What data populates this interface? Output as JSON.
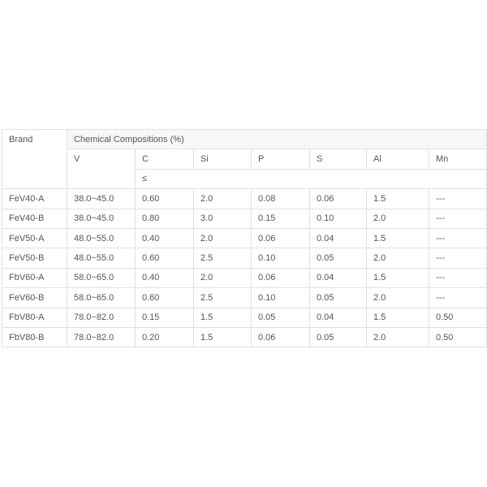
{
  "table": {
    "brand_header": "Brand",
    "group_header": "Chemical Compositions (%)",
    "elements": [
      "V",
      "C",
      "Si",
      "P",
      "S",
      "Al",
      "Mn"
    ],
    "limit_symbol": "≤",
    "rows": [
      [
        "FeV40-A",
        "38.0~45.0",
        "0.60",
        "2.0",
        "0.08",
        "0.06",
        "1.5",
        "---"
      ],
      [
        "FeV40-B",
        "38.0~45.0",
        "0.80",
        "3.0",
        "0.15",
        "0.10",
        "2.0",
        "---"
      ],
      [
        "FeV50-A",
        "48.0~55.0",
        "0.40",
        "2.0",
        "0.06",
        "0.04",
        "1.5",
        "---"
      ],
      [
        "FeV50-B",
        "48.0~55.0",
        "0.60",
        "2.5",
        "0.10",
        "0.05",
        "2.0",
        "---"
      ],
      [
        "FbV60-A",
        "58.0~65.0",
        "0.40",
        "2.0",
        "0.06",
        "0.04",
        "1.5",
        "---"
      ],
      [
        "FeV60-B",
        "58.0~65.0",
        "0.60",
        "2.5",
        "0.10",
        "0.05",
        "2.0",
        "---"
      ],
      [
        "FbV80-A",
        "78.0~82.0",
        "0.15",
        "1.5",
        "0.05",
        "0.04",
        "1.5",
        "0.50"
      ],
      [
        "FbV80-B",
        "78.0~82.0",
        "0.20",
        "1.5",
        "0.06",
        "0.05",
        "2.0",
        "0.50"
      ]
    ]
  }
}
